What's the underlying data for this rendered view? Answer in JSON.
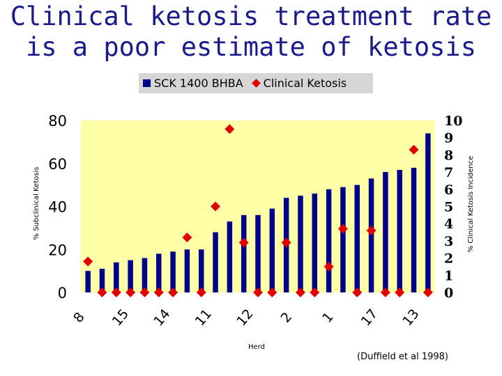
{
  "title_lines": [
    "Clinical ketosis treatment rate",
    "is a poor estimate of ketosis"
  ],
  "credit": "(Duffield et al 1998)",
  "colors": {
    "plot_background": "#ffffa8",
    "bar": "#00008b",
    "marker": "#e00000",
    "title": "#1a1a8c",
    "legend_background": "#d6d6d6"
  },
  "chart_data": {
    "type": "bar",
    "xlabel": "Herd",
    "ylabel_left": "% Subclinical Ketosis",
    "ylabel_right": "% Clinical Ketosis Incidence",
    "ylim_left": [
      0,
      80
    ],
    "ylim_right": [
      0,
      10
    ],
    "yticks_left": [
      "0",
      "20",
      "40",
      "60",
      "80"
    ],
    "yticks_right": [
      "0",
      "1",
      "2",
      "3",
      "4",
      "5",
      "6",
      "7",
      "8",
      "9",
      "10"
    ],
    "x_tick_labels": [
      "8",
      "15",
      "14",
      "11",
      "12",
      "2",
      "1",
      "17",
      "13"
    ],
    "grid": false,
    "legend_position": "top",
    "series": [
      {
        "name": "SCK 1400 BHBA",
        "type": "bar",
        "axis": "left",
        "values": [
          10,
          11,
          14,
          15,
          16,
          18,
          19,
          20,
          20,
          28,
          33,
          36,
          36,
          39,
          44,
          45,
          46,
          48,
          49,
          50,
          53,
          56,
          57,
          58,
          74
        ]
      },
      {
        "name": "Clinical Ketosis",
        "type": "scatter",
        "axis": "right",
        "values": [
          1.8,
          0,
          0,
          0,
          0,
          0,
          0,
          3.2,
          0,
          5,
          9.5,
          2.9,
          0,
          0,
          2.9,
          0,
          0,
          1.5,
          3.7,
          0,
          3.6,
          0,
          0,
          8.3,
          0
        ]
      }
    ]
  }
}
